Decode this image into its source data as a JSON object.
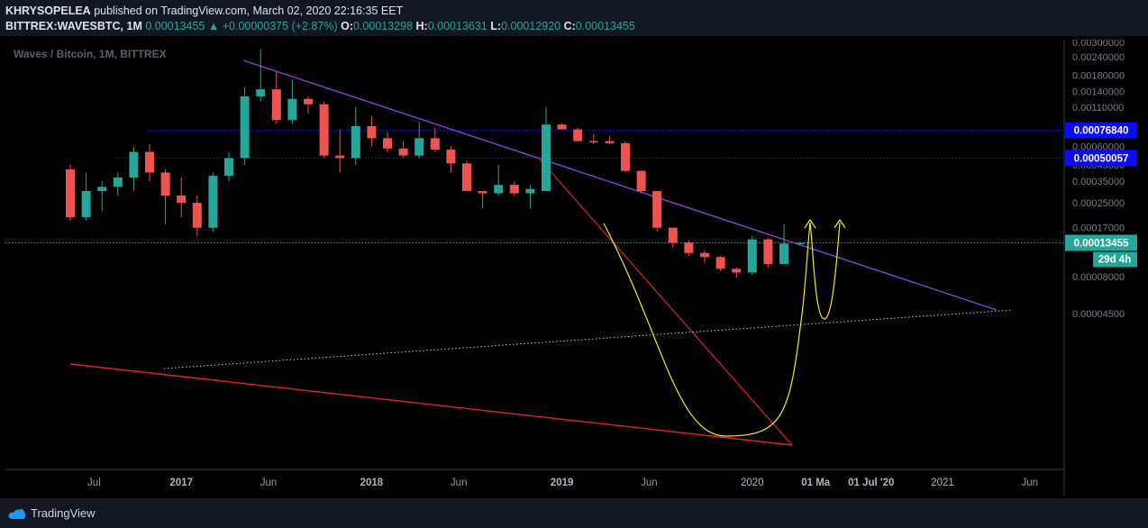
{
  "header": {
    "author": "KHRYSOPELEA",
    "published_text": "published on TradingView.com, March 02, 2020 22:16:35 EET",
    "symbol": "BITTREX:WAVESBTC, 1M",
    "last": "0.00013455",
    "change": "▲ +0.00000375 (+2.87%)",
    "o_label": "O:",
    "o_value": "0.00013298",
    "h_label": "H:",
    "h_value": "0.00013631",
    "l_label": "L:",
    "l_value": "0.00012920",
    "c_label": "C:",
    "c_value": "0.00013455"
  },
  "footer": {
    "brand": "TradingView"
  },
  "chart_data": {
    "type": "candlestick",
    "title": "Waves / Bitcoin, 1M, BITTREX",
    "yscale": "log",
    "ylim": [
      4.2e-06,
      0.003
    ],
    "price_ticks": [
      0.003,
      0.0024,
      0.0018,
      0.0014,
      0.0011,
      0.0006,
      0.00045,
      0.00035,
      0.00025,
      0.00017,
      8e-05,
      4.5e-05
    ],
    "price_tick_labels": [
      "0.00300000",
      "0.00240000",
      "0.00180000",
      "0.00140000",
      "0.00110000",
      "0.00060000",
      "0.00045000",
      "0.00035000",
      "0.00025000",
      "0.00017000",
      "0.00008000",
      "0.00004500"
    ],
    "time_labels": [
      "Jul",
      "2017",
      "Jun",
      "2018",
      "Jun",
      "2019",
      "Jun",
      "2020",
      "01 Ma",
      "01 Jul '20",
      "2021",
      "Jun"
    ],
    "time_label_slots": [
      1.5,
      7,
      12.5,
      19,
      24.5,
      31,
      36.5,
      43,
      47,
      50.5,
      55,
      60.5
    ],
    "up_color": "#26a69a",
    "down_color": "#ef5350",
    "candles": [
      {
        "t": "2016-04",
        "o": 0.00042,
        "h": 0.00045,
        "l": 0.00019,
        "c": 0.0002
      },
      {
        "t": "2016-05",
        "o": 0.0002,
        "h": 0.0004,
        "l": 0.00019,
        "c": 0.0003
      },
      {
        "t": "2016-06",
        "o": 0.0003,
        "h": 0.00035,
        "l": 0.00022,
        "c": 0.00032
      },
      {
        "t": "2016-07",
        "o": 0.00032,
        "h": 0.0004,
        "l": 0.00028,
        "c": 0.00037
      },
      {
        "t": "2016-08",
        "o": 0.00037,
        "h": 0.0006,
        "l": 0.0003,
        "c": 0.00055
      },
      {
        "t": "2016-09",
        "o": 0.00055,
        "h": 0.00062,
        "l": 0.00035,
        "c": 0.0004
      },
      {
        "t": "2016-10",
        "o": 0.0004,
        "h": 0.00042,
        "l": 0.00018,
        "c": 0.00028
      },
      {
        "t": "2016-11",
        "o": 0.00028,
        "h": 0.00037,
        "l": 0.0002,
        "c": 0.00025
      },
      {
        "t": "2016-12",
        "o": 0.00025,
        "h": 0.00028,
        "l": 0.00015,
        "c": 0.00017
      },
      {
        "t": "2017-01",
        "o": 0.00017,
        "h": 0.0004,
        "l": 0.00016,
        "c": 0.00038
      },
      {
        "t": "2017-02",
        "o": 0.00038,
        "h": 0.00055,
        "l": 0.00035,
        "c": 0.0005
      },
      {
        "t": "2017-03",
        "o": 0.0005,
        "h": 0.0015,
        "l": 0.00045,
        "c": 0.0013
      },
      {
        "t": "2017-04",
        "o": 0.0013,
        "h": 0.0027,
        "l": 0.0012,
        "c": 0.00145
      },
      {
        "t": "2017-05",
        "o": 0.00145,
        "h": 0.0019,
        "l": 0.00085,
        "c": 0.0009
      },
      {
        "t": "2017-06",
        "o": 0.0009,
        "h": 0.0017,
        "l": 0.00085,
        "c": 0.00125
      },
      {
        "t": "2017-07",
        "o": 0.00125,
        "h": 0.0013,
        "l": 0.001,
        "c": 0.00115
      },
      {
        "t": "2017-08",
        "o": 0.00115,
        "h": 0.0012,
        "l": 0.0005,
        "c": 0.00052
      },
      {
        "t": "2017-09",
        "o": 0.00052,
        "h": 0.00078,
        "l": 0.0004,
        "c": 0.0005
      },
      {
        "t": "2017-10",
        "o": 0.0005,
        "h": 0.0011,
        "l": 0.00045,
        "c": 0.00082
      },
      {
        "t": "2017-11",
        "o": 0.00082,
        "h": 0.00095,
        "l": 0.0006,
        "c": 0.00068
      },
      {
        "t": "2017-12",
        "o": 0.00068,
        "h": 0.00075,
        "l": 0.00055,
        "c": 0.00058
      },
      {
        "t": "2018-01",
        "o": 0.00058,
        "h": 0.00065,
        "l": 0.0005,
        "c": 0.00052
      },
      {
        "t": "2018-02",
        "o": 0.00052,
        "h": 0.00088,
        "l": 0.0005,
        "c": 0.00068
      },
      {
        "t": "2018-03",
        "o": 0.00068,
        "h": 0.0008,
        "l": 0.00055,
        "c": 0.00057
      },
      {
        "t": "2018-04",
        "o": 0.00057,
        "h": 0.0006,
        "l": 0.0004,
        "c": 0.00046
      },
      {
        "t": "2018-05",
        "o": 0.00046,
        "h": 0.00048,
        "l": 0.0003,
        "c": 0.0003
      },
      {
        "t": "2018-06",
        "o": 0.0003,
        "h": 0.0003,
        "l": 0.00023,
        "c": 0.00029
      },
      {
        "t": "2018-07",
        "o": 0.00029,
        "h": 0.00045,
        "l": 0.00028,
        "c": 0.00033
      },
      {
        "t": "2018-08",
        "o": 0.00033,
        "h": 0.00035,
        "l": 0.00028,
        "c": 0.00029
      },
      {
        "t": "2018-09",
        "o": 0.00029,
        "h": 0.00033,
        "l": 0.00023,
        "c": 0.00031
      },
      {
        "t": "2018-10",
        "o": 0.0003,
        "h": 0.0011,
        "l": 0.0003,
        "c": 0.00084
      },
      {
        "t": "2018-11",
        "o": 0.00084,
        "h": 0.00086,
        "l": 0.00078,
        "c": 0.00078
      },
      {
        "t": "2018-12",
        "o": 0.00078,
        "h": 0.0008,
        "l": 0.00065,
        "c": 0.00065
      },
      {
        "t": "2019-01",
        "o": 0.00065,
        "h": 0.00072,
        "l": 0.00062,
        "c": 0.00064
      },
      {
        "t": "2019-02",
        "o": 0.00065,
        "h": 0.0007,
        "l": 0.00062,
        "c": 0.00063
      },
      {
        "t": "2019-03",
        "o": 0.00063,
        "h": 0.00065,
        "l": 0.0004,
        "c": 0.00041
      },
      {
        "t": "2019-04",
        "o": 0.00041,
        "h": 0.00041,
        "l": 0.00029,
        "c": 0.0003
      },
      {
        "t": "2019-05",
        "o": 0.0003,
        "h": 0.0003,
        "l": 0.00016,
        "c": 0.00017
      },
      {
        "t": "2019-06",
        "o": 0.00017,
        "h": 0.00017,
        "l": 0.000125,
        "c": 0.000135
      },
      {
        "t": "2019-07",
        "o": 0.000135,
        "h": 0.00014,
        "l": 0.00011,
        "c": 0.000115
      },
      {
        "t": "2019-08",
        "o": 0.000115,
        "h": 0.00012,
        "l": 9.9e-05,
        "c": 0.000108
      },
      {
        "t": "2019-09",
        "o": 0.000108,
        "h": 0.00011,
        "l": 8.7e-05,
        "c": 9e-05
      },
      {
        "t": "2019-10",
        "o": 9e-05,
        "h": 9.2e-05,
        "l": 7.8e-05,
        "c": 8.5e-05
      },
      {
        "t": "2019-11",
        "o": 8.5e-05,
        "h": 0.00015,
        "l": 8.2e-05,
        "c": 0.000142
      },
      {
        "t": "2019-12",
        "o": 0.000142,
        "h": 0.000145,
        "l": 9.2e-05,
        "c": 9.7e-05
      },
      {
        "t": "2020-01",
        "o": 9.7e-05,
        "h": 0.00018,
        "l": 9.7e-05,
        "c": 0.000133
      },
      {
        "t": "2020-02",
        "o": 0.00013298,
        "h": 0.00013631,
        "l": 0.0001292,
        "c": 0.00013455
      }
    ],
    "horizontal_levels": [
      {
        "price": 0.0007684,
        "label": "0.00076840",
        "color": "#0a0aff"
      },
      {
        "price": 0.00050057,
        "label": "0.00050057",
        "color": "#0a0aff"
      },
      {
        "price": 0.00013455,
        "label": "0.00013455",
        "color": "#26a69a"
      }
    ],
    "countdown": "29d 4h"
  }
}
